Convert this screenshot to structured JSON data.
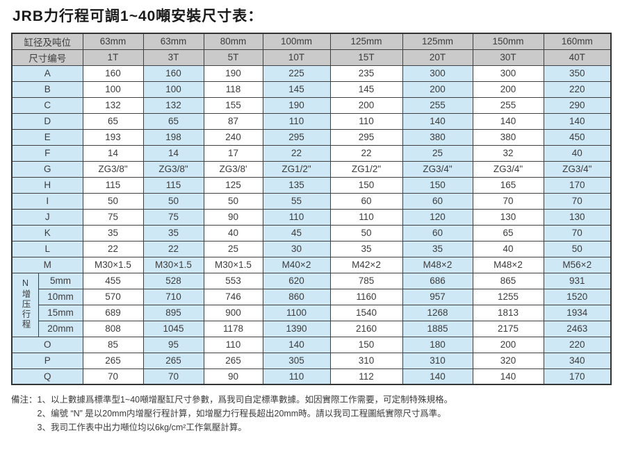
{
  "title": "JRB力行程可調1~40噸安裝尺寸表：",
  "table": {
    "header_rows": [
      {
        "label": "缸径及吨位",
        "values": [
          "63mm",
          "63mm",
          "80mm",
          "100mm",
          "125mm",
          "125mm",
          "150mm",
          "160mm"
        ]
      },
      {
        "label": "尺寸编号",
        "values": [
          "1T",
          "3T",
          "5T",
          "10T",
          "15T",
          "20T",
          "30T",
          "40T"
        ]
      }
    ],
    "rows": [
      {
        "label": "A",
        "values": [
          "160",
          "160",
          "190",
          "225",
          "235",
          "300",
          "300",
          "350"
        ]
      },
      {
        "label": "B",
        "values": [
          "100",
          "100",
          "118",
          "145",
          "145",
          "200",
          "200",
          "220"
        ]
      },
      {
        "label": "C",
        "values": [
          "132",
          "132",
          "155",
          "190",
          "200",
          "255",
          "255",
          "290"
        ]
      },
      {
        "label": "D",
        "values": [
          "65",
          "65",
          "87",
          "110",
          "110",
          "140",
          "140",
          "140"
        ]
      },
      {
        "label": "E",
        "values": [
          "193",
          "198",
          "240",
          "295",
          "295",
          "380",
          "380",
          "450"
        ]
      },
      {
        "label": "F",
        "values": [
          "14",
          "14",
          "17",
          "22",
          "22",
          "25",
          "32",
          "40"
        ]
      },
      {
        "label": "G",
        "values": [
          "ZG3/8\"",
          "ZG3/8\"",
          "ZG3/8'",
          "ZG1/2\"",
          "ZG1/2\"",
          "ZG3/4\"",
          "ZG3/4\"",
          "ZG3/4\""
        ]
      },
      {
        "label": "H",
        "values": [
          "115",
          "115",
          "125",
          "135",
          "150",
          "150",
          "165",
          "170"
        ]
      },
      {
        "label": "I",
        "values": [
          "50",
          "50",
          "50",
          "55",
          "60",
          "60",
          "70",
          "70"
        ]
      },
      {
        "label": "J",
        "values": [
          "75",
          "75",
          "90",
          "110",
          "110",
          "120",
          "130",
          "130"
        ]
      },
      {
        "label": "K",
        "values": [
          "35",
          "35",
          "40",
          "45",
          "50",
          "60",
          "65",
          "70"
        ]
      },
      {
        "label": "L",
        "values": [
          "22",
          "22",
          "25",
          "30",
          "35",
          "35",
          "40",
          "50"
        ]
      },
      {
        "label": "M",
        "values": [
          "M30×1.5",
          "M30×1.5",
          "M30×1.5",
          "M40×2",
          "M42×2",
          "M48×2",
          "M48×2",
          "M56×2"
        ]
      }
    ],
    "n_section": {
      "label": "N增压行程",
      "rows": [
        {
          "label": "5mm",
          "values": [
            "455",
            "528",
            "553",
            "620",
            "785",
            "686",
            "865",
            "931"
          ]
        },
        {
          "label": "10mm",
          "values": [
            "570",
            "710",
            "746",
            "860",
            "1160",
            "957",
            "1255",
            "1520"
          ]
        },
        {
          "label": "15mm",
          "values": [
            "689",
            "895",
            "900",
            "1100",
            "1540",
            "1268",
            "1813",
            "1934"
          ]
        },
        {
          "label": "20mm",
          "values": [
            "808",
            "1045",
            "1178",
            "1390",
            "2160",
            "1885",
            "2175",
            "2463"
          ]
        }
      ]
    },
    "bottom_rows": [
      {
        "label": "O",
        "values": [
          "85",
          "95",
          "110",
          "140",
          "150",
          "180",
          "200",
          "220"
        ]
      },
      {
        "label": "P",
        "values": [
          "265",
          "265",
          "265",
          "305",
          "310",
          "310",
          "320",
          "340"
        ]
      },
      {
        "label": "Q",
        "values": [
          "70",
          "70",
          "90",
          "110",
          "112",
          "140",
          "140",
          "170"
        ]
      }
    ]
  },
  "notes": {
    "prefix": "備注：",
    "items": [
      "1、以上數據爲標準型1~40噸增壓缸尺寸參數，爲我司自定標準數據。如因實際工作需要，可定制特殊規格。",
      "2、编號 “N” 是以20mm内增壓行程計算，如增壓力行程長超出20mm時。請以我司工程圖紙實際尺寸爲準。",
      "3、我司工作表中出力噸位均以6kg/cm²工作氣壓計算。"
    ]
  },
  "colors": {
    "header_bg": "#c9cac9",
    "row_blue": "#cfe8f6",
    "border": "#3f3f3f",
    "text": "#3c3c3c"
  }
}
